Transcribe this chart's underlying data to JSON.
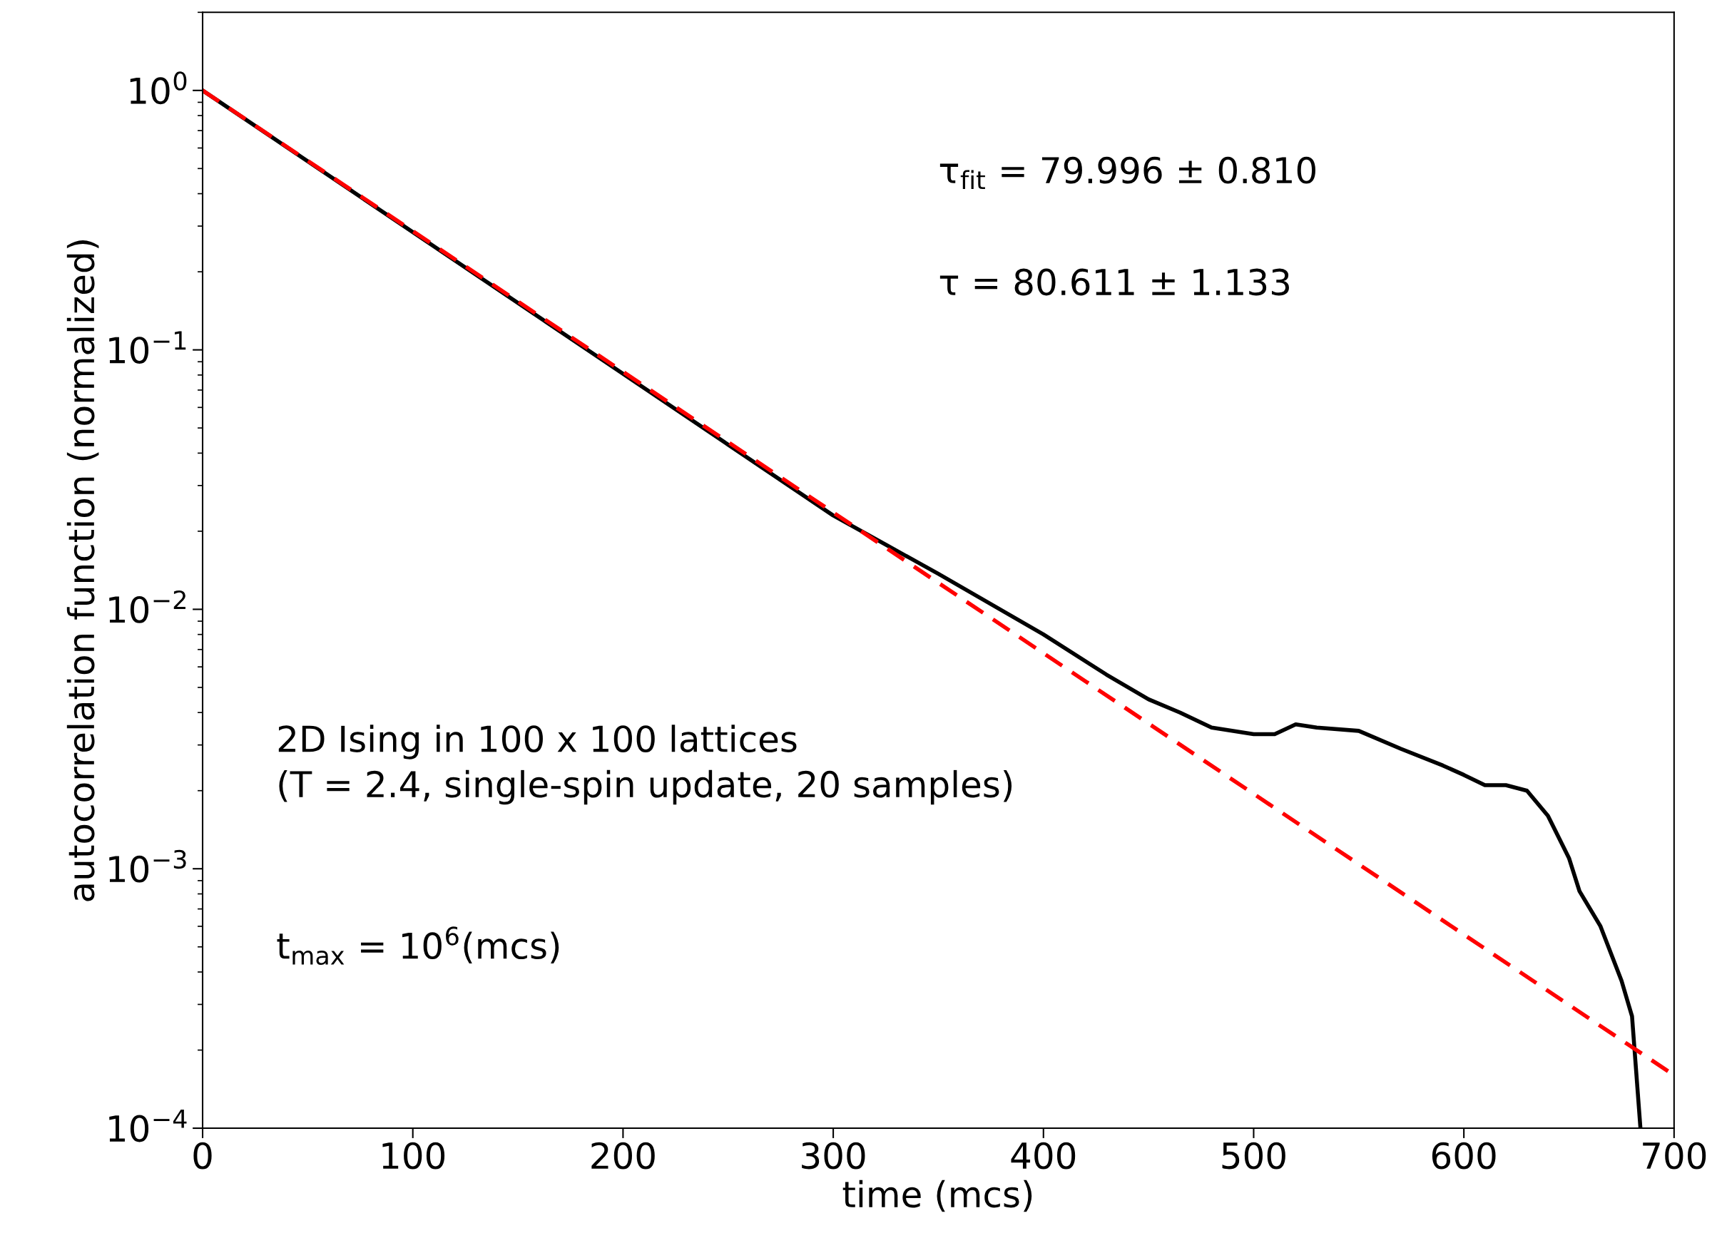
{
  "chart_data": {
    "type": "line",
    "xlabel": "time (mcs)",
    "ylabel": "autocorrelation function (normalized)",
    "log": "y",
    "xlim": [
      0,
      700
    ],
    "ylim": [
      0.0001,
      2
    ],
    "xticks": [
      0,
      100,
      200,
      300,
      400,
      500,
      600,
      700
    ],
    "yticks": [
      {
        "value": 0.0001,
        "label": "10$^{−4}$"
      },
      {
        "value": 0.001,
        "label": "10$^{−3}$"
      },
      {
        "value": 0.01,
        "label": "10$^{−2}$"
      },
      {
        "value": 0.1,
        "label": "10$^{−1}$"
      },
      {
        "value": 1,
        "label": "10$^{0}$"
      }
    ],
    "grid": false,
    "legend": false,
    "series": [
      {
        "color": "#000000",
        "line_style": "solid",
        "x": [
          0,
          300,
          350,
          400,
          430,
          450,
          465,
          480,
          500,
          510,
          520,
          530,
          550,
          570,
          590,
          600,
          610,
          620,
          630,
          640,
          650,
          655,
          665,
          675,
          680,
          684
        ],
        "values": [
          1,
          0.023,
          0.0137,
          0.008,
          0.0056,
          0.0045,
          0.004,
          0.0035,
          0.0033,
          0.0033,
          0.0036,
          0.0035,
          0.0034,
          0.0029,
          0.0025,
          0.0023,
          0.0021,
          0.0021,
          0.002,
          0.0016,
          0.0011,
          0.00082,
          0.0006,
          0.00037,
          0.00027,
          0.0001
        ]
      },
      {
        "color": "#ff0000",
        "line_style": "dashed",
        "x": [
          0,
          700
        ],
        "values": [
          1,
          0.00016
        ]
      }
    ],
    "annotations": [
      "τ$_{fit}$ = 79.996 ± 0.810",
      "τ = 80.611 ± 1.133",
      "2D Ising in 100 x 100 lattices\n(T = 2.4, single-spin update, 20 samples)",
      "t$_{max}$ = 10$^{6}$(mcs)"
    ]
  }
}
